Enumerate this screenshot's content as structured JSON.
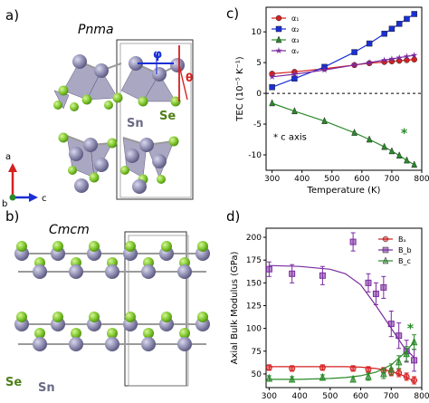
{
  "panels": {
    "a": {
      "label": "a)",
      "structure": "Pnma",
      "angle_phi": "φ",
      "angle_theta": "θ",
      "atom_se": "Se",
      "atom_sn": "Sn"
    },
    "b": {
      "label": "b)",
      "structure": "Cmcm",
      "atom_se": "Se",
      "atom_sn": "Sn"
    },
    "c": {
      "label": "c)"
    },
    "d": {
      "label": "d)"
    }
  },
  "axes_triad": {
    "a": "a",
    "b": "b",
    "c": "c"
  },
  "colors": {
    "se": "#7cc52a",
    "sn": "#8a88ad",
    "red": "#d62020",
    "blue": "#1a2fd4",
    "green": "#2a8a2a",
    "purple": "#7a2aa0",
    "c_purple": "#5a1f9a"
  },
  "chart_data": [
    {
      "type": "line",
      "title": "",
      "xlabel": "Temperature (K)",
      "ylabel": "TEC (10⁻⁵ K⁻¹)",
      "xlim": [
        280,
        800
      ],
      "ylim": [
        -12.5,
        14
      ],
      "xticks": [
        "300",
        "400",
        "500",
        "600",
        "700",
        "800"
      ],
      "yticks": [
        "-10",
        "-5",
        "0",
        "5",
        "10"
      ],
      "annotation": "* c axis",
      "legend": "upper-left",
      "x": [
        300,
        375,
        475,
        575,
        625,
        675,
        700,
        725,
        750,
        775
      ],
      "series": [
        {
          "name": "α₁",
          "color": "#d62020",
          "marker": "circle",
          "values": [
            3.2,
            3.5,
            4.0,
            4.6,
            4.9,
            5.1,
            5.2,
            5.3,
            5.4,
            5.5
          ]
        },
        {
          "name": "α₂",
          "color": "#1a2fd4",
          "marker": "square",
          "values": [
            1.0,
            2.4,
            4.3,
            6.7,
            8.1,
            9.7,
            10.5,
            11.3,
            12.1,
            12.9
          ]
        },
        {
          "name": "α₃",
          "color": "#2a8a2a",
          "marker": "triangle",
          "values": [
            -1.6,
            -2.9,
            -4.5,
            -6.4,
            -7.5,
            -8.7,
            -9.4,
            -10.1,
            -10.9,
            -11.6
          ]
        },
        {
          "name": "αᵥ",
          "color": "#7a2aa0",
          "marker": "star",
          "values": [
            2.7,
            3.1,
            3.8,
            4.6,
            5.0,
            5.4,
            5.6,
            5.8,
            6.0,
            6.2
          ]
        }
      ]
    },
    {
      "type": "scatter",
      "title": "",
      "xlabel": "Temperature (K)",
      "ylabel": "Axial Bulk Modulus (GPa)",
      "xlim": [
        290,
        800
      ],
      "ylim": [
        35,
        210
      ],
      "xticks": [
        "300",
        "400",
        "500",
        "600",
        "700",
        "800"
      ],
      "yticks": [
        "50",
        "75",
        "100",
        "125",
        "150",
        "175",
        "200"
      ],
      "legend": "upper-right",
      "annotation": "*",
      "series": [
        {
          "name": "Bₐ",
          "color": "#d62020",
          "marker": "circle",
          "x": [
            300,
            375,
            475,
            575,
            625,
            675,
            700,
            725,
            750,
            775
          ],
          "values": [
            57,
            56,
            57,
            56,
            55,
            54,
            52,
            51,
            47,
            43
          ],
          "error": [
            3,
            3,
            3,
            3,
            3,
            3,
            4,
            4,
            4,
            4
          ],
          "fit_x": [
            300,
            400,
            500,
            550,
            600,
            650,
            700,
            740,
            775
          ],
          "fit_y": [
            58,
            58,
            58,
            58,
            57.5,
            56,
            53,
            48,
            42
          ]
        },
        {
          "name": "B_b",
          "color": "#7a2aa0",
          "marker": "square",
          "x": [
            300,
            375,
            475,
            575,
            625,
            650,
            675,
            700,
            725,
            750,
            775
          ],
          "values": [
            165,
            160,
            158,
            195,
            150,
            138,
            145,
            105,
            92,
            75,
            65
          ],
          "error": [
            8,
            10,
            10,
            10,
            10,
            12,
            12,
            14,
            14,
            12,
            12
          ],
          "fit_x": [
            300,
            400,
            500,
            550,
            600,
            650,
            700,
            740,
            775
          ],
          "fit_y": [
            169,
            168,
            165,
            160,
            148,
            125,
            100,
            80,
            68
          ]
        },
        {
          "name": "B_c",
          "color": "#2a8a2a",
          "marker": "triangle",
          "x": [
            300,
            375,
            475,
            575,
            625,
            675,
            700,
            725,
            750,
            775
          ],
          "values": [
            45,
            44,
            46,
            44,
            47,
            50,
            55,
            63,
            72,
            85
          ],
          "error": [
            3,
            3,
            3,
            3,
            4,
            5,
            6,
            7,
            8,
            8
          ],
          "fit_x": [
            300,
            400,
            500,
            550,
            600,
            650,
            700,
            740,
            775
          ],
          "fit_y": [
            44,
            44,
            45,
            46,
            48,
            52,
            60,
            72,
            85
          ]
        }
      ]
    }
  ]
}
